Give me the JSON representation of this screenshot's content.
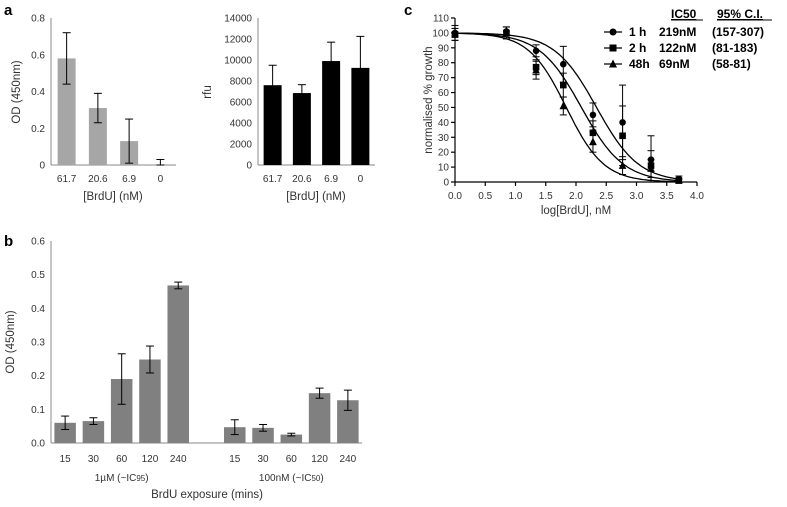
{
  "panels": {
    "a": "a",
    "b": "b",
    "c": "c"
  },
  "chart_data": [
    {
      "id": "a-left",
      "type": "bar",
      "categories": [
        "61.7",
        "20.6",
        "6.9",
        "0"
      ],
      "values": [
        0.58,
        0.31,
        0.13,
        0.0
      ],
      "errors": [
        0.14,
        0.08,
        0.12,
        0.03
      ],
      "ylabel": "OD (450nm)",
      "xlabel": "[BrdU] (nM)",
      "ylim": [
        0,
        0.8
      ],
      "yticks": [
        "0",
        "0.2",
        "0.4",
        "0.6",
        "0.8"
      ],
      "color": "#a6a6a6"
    },
    {
      "id": "a-right",
      "type": "bar",
      "categories": [
        "61.7",
        "20.6",
        "6.9",
        "0"
      ],
      "values": [
        7600,
        6850,
        9900,
        9250
      ],
      "errors": [
        1900,
        800,
        1800,
        3000
      ],
      "ylabel": "rfu",
      "xlabel": "[BrdU] (nM)",
      "ylim": [
        0,
        14000
      ],
      "yticks": [
        "0",
        "2000",
        "4000",
        "6000",
        "8000",
        "10000",
        "12000",
        "14000"
      ],
      "color": "#000000"
    },
    {
      "id": "b",
      "type": "bar",
      "groups": [
        {
          "label": "1µM (~IC",
          "sub": "95",
          "close": ")",
          "categories": [
            "15",
            "30",
            "60",
            "120",
            "240"
          ],
          "values": [
            0.06,
            0.065,
            0.19,
            0.248,
            0.468
          ],
          "errors": [
            0.02,
            0.01,
            0.075,
            0.04,
            0.01
          ]
        },
        {
          "label": "100nM (~IC",
          "sub": "50",
          "close": ")",
          "categories": [
            "15",
            "30",
            "60",
            "120",
            "240"
          ],
          "values": [
            0.047,
            0.045,
            0.025,
            0.148,
            0.127
          ],
          "errors": [
            0.022,
            0.01,
            0.004,
            0.015,
            0.03
          ]
        }
      ],
      "ylabel": "OD (450nm)",
      "xlabel": "BrdU exposure (mins)",
      "ylim": [
        0,
        0.6
      ],
      "yticks": [
        "0.0",
        "0.1",
        "0.2",
        "0.3",
        "0.4",
        "0.5",
        "0.6"
      ],
      "color": "#808080"
    },
    {
      "id": "c",
      "type": "line",
      "xlabel": "log[BrdU], nM",
      "ylabel": "normalised % growth",
      "xlim": [
        0,
        4
      ],
      "ylim": [
        0,
        110
      ],
      "xticks": [
        "0.0",
        "0.5",
        "1.0",
        "1.5",
        "2.0",
        "2.5",
        "3.0",
        "3.5",
        "4.0"
      ],
      "yticks": [
        "0",
        "10",
        "20",
        "30",
        "40",
        "50",
        "60",
        "70",
        "80",
        "90",
        "100",
        "110"
      ],
      "x": [
        0,
        0.85,
        1.34,
        1.79,
        2.28,
        2.77,
        3.24,
        3.7
      ],
      "legend_header": {
        "ic50": "IC50",
        "ci": "95% C.I."
      },
      "series": [
        {
          "name": "1 h",
          "ic50": "219nM",
          "ci": "(157-307)",
          "marker": "circle",
          "logic50": 2.34,
          "hill": 1.25,
          "values": [
            100,
            101,
            88,
            79,
            45,
            40,
            15,
            2
          ],
          "errors": [
            3,
            3,
            4,
            12,
            8,
            25,
            16,
            2
          ]
        },
        {
          "name": "2 h",
          "ic50": "122nM",
          "ci": "(81-183)",
          "marker": "square",
          "logic50": 2.09,
          "hill": 1.25,
          "values": [
            99,
            100,
            77,
            65,
            33,
            31,
            11,
            1
          ],
          "errors": [
            4,
            4,
            5,
            8,
            8,
            20,
            10,
            1
          ]
        },
        {
          "name": "48h",
          "ic50": "69nM",
          "ci": "(58-81)",
          "marker": "triangle",
          "logic50": 1.84,
          "hill": 1.4,
          "values": [
            100,
            100,
            75,
            51,
            27,
            11,
            9,
            1
          ],
          "errors": [
            5,
            4,
            6,
            6,
            7,
            6,
            6,
            1
          ]
        }
      ]
    }
  ]
}
